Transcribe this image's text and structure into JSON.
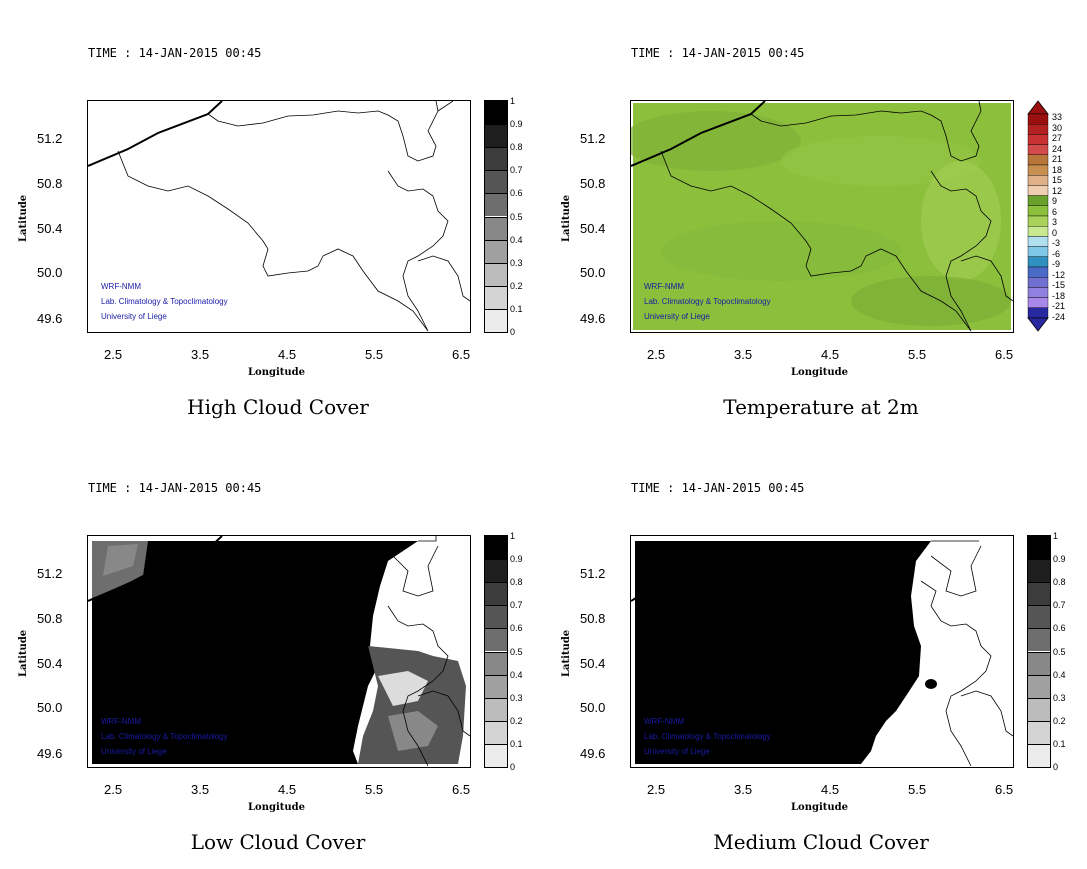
{
  "panels": [
    {
      "id": "high",
      "time": "TIME : 14-JAN-2015 00:45",
      "title": "High Cloud Cover",
      "xlabel": "Longitude",
      "ylabel": "Latitude",
      "xticks": [
        "2.5",
        "3.5",
        "4.5",
        "5.5",
        "6.5"
      ],
      "yticks": [
        "51.2",
        "50.8",
        "50.4",
        "50.0",
        "49.6"
      ],
      "credits": [
        "WRF-NMM",
        "Lab. Climatology & Topoclimatology",
        "University of Liege"
      ],
      "colorbar": [
        "1",
        "0.9",
        "0.8",
        "0.7",
        "0.6",
        "0.5",
        "0.4",
        "0.3",
        "0.2",
        "0.1",
        "0"
      ]
    },
    {
      "id": "temp",
      "time": "TIME : 14-JAN-2015 00:45",
      "title": "Temperature at 2m",
      "xlabel": "Longitude",
      "ylabel": "Latitude",
      "xticks": [
        "2.5",
        "3.5",
        "4.5",
        "5.5",
        "6.5"
      ],
      "yticks": [
        "51.2",
        "50.8",
        "50.4",
        "50.0",
        "49.6"
      ],
      "credits": [
        "WRF-NMM",
        "Lab. Climatology & Topoclimatology",
        "University of Liege"
      ],
      "colorbar": [
        "33",
        "30",
        "27",
        "24",
        "21",
        "18",
        "15",
        "12",
        "9",
        "6",
        "3",
        "0",
        "-3",
        "-6",
        "-9",
        "-12",
        "-15",
        "-18",
        "-21",
        "-24"
      ]
    },
    {
      "id": "low",
      "time": "TIME : 14-JAN-2015 00:45",
      "title": "Low Cloud Cover",
      "xlabel": "Longitude",
      "ylabel": "Latitude",
      "xticks": [
        "2.5",
        "3.5",
        "4.5",
        "5.5",
        "6.5"
      ],
      "yticks": [
        "51.2",
        "50.8",
        "50.4",
        "50.0",
        "49.6"
      ],
      "credits": [
        "WRF-NMM",
        "Lab. Climatology & Topoclimatology",
        "University of Liege"
      ],
      "colorbar": [
        "1",
        "0.9",
        "0.8",
        "0.7",
        "0.6",
        "0.5",
        "0.4",
        "0.3",
        "0.2",
        "0.1",
        "0"
      ]
    },
    {
      "id": "medium",
      "time": "TIME : 14-JAN-2015 00:45",
      "title": "Medium Cloud Cover",
      "xlabel": "Longitude",
      "ylabel": "Latitude",
      "xticks": [
        "2.5",
        "3.5",
        "4.5",
        "5.5",
        "6.5"
      ],
      "yticks": [
        "51.2",
        "50.8",
        "50.4",
        "50.0",
        "49.6"
      ],
      "credits": [
        "WRF-NMM",
        "Lab. Climatology & Topoclimatology",
        "University of Liege"
      ],
      "colorbar": [
        "1",
        "0.9",
        "0.8",
        "0.7",
        "0.6",
        "0.5",
        "0.4",
        "0.3",
        "0.2",
        "0.1",
        "0"
      ]
    }
  ],
  "colors": {
    "gray_scale": [
      "#000000",
      "#1e1e1e",
      "#3c3c3c",
      "#555555",
      "#6e6e6e",
      "#888888",
      "#a0a0a0",
      "#bcbcbc",
      "#d4d4d4",
      "#ececec"
    ],
    "temp_scale": [
      "#9a1010",
      "#b22020",
      "#c83232",
      "#d24a4a",
      "#b8763a",
      "#c89050",
      "#e0b088",
      "#f0cfb0",
      "#6aa02c",
      "#8cbf3c",
      "#a8d25a",
      "#c8e890",
      "#b0e0f0",
      "#80c8e8",
      "#3090c0",
      "#4a6ac8",
      "#7070d0",
      "#9080e0",
      "#a888e8",
      "#2828a0"
    ],
    "temp_field": "#8cbf3c"
  }
}
